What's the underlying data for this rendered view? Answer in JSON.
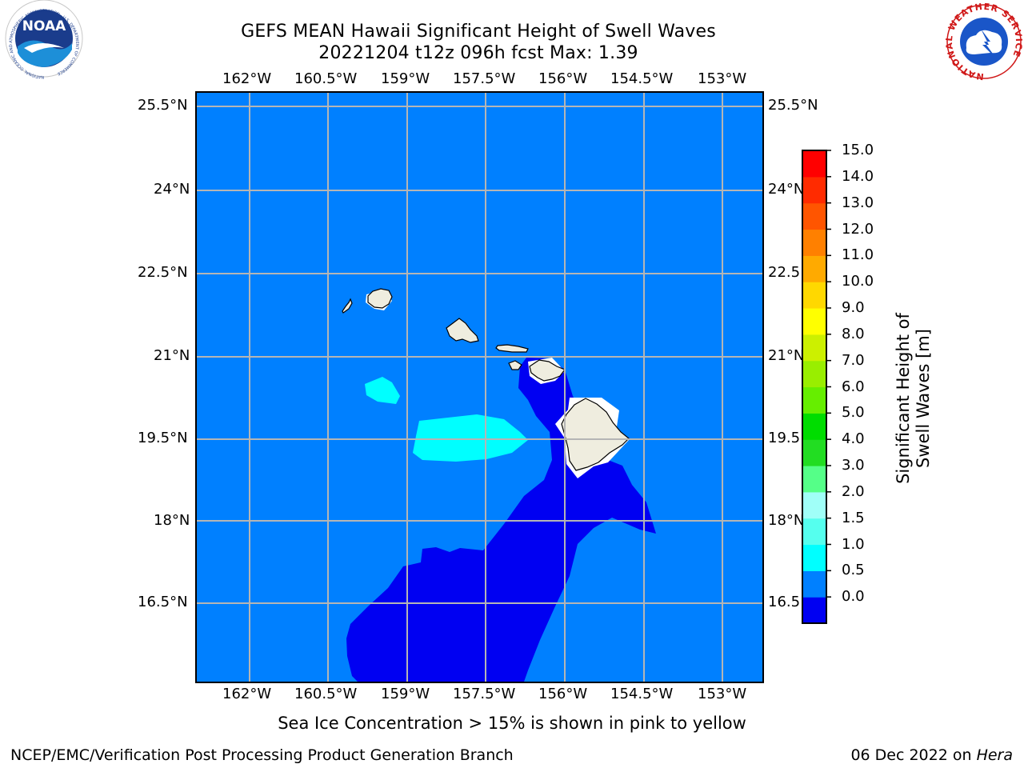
{
  "title": {
    "line1": "GEFS MEAN Hawaii Significant Height of Swell Waves",
    "line2": "20221204 t12z 096h fcst   Max: 1.39"
  },
  "map": {
    "lon_labels": [
      "162°W",
      "160.5°W",
      "159°W",
      "157.5°W",
      "156°W",
      "154.5°W",
      "153°W"
    ],
    "lat_labels_left": [
      "25.5°N",
      "24°N",
      "22.5°N",
      "21°N",
      "19.5°N",
      "18°N",
      "16.5°N"
    ],
    "lat_labels_right": [
      "25.5°N",
      "24°N",
      "22.5",
      "21°N",
      "19.5",
      "18°N",
      "16.5"
    ],
    "ocean_color": "#0080ff",
    "land_color": "#efeddf",
    "grid_color": "#b5b5b5"
  },
  "colorbar": {
    "label": "Significant Height of Swell Waves [m]",
    "ticks": [
      "15.0",
      "14.0",
      "13.0",
      "12.0",
      "11.0",
      "10.0",
      "9.0",
      "8.0",
      "7.0",
      "6.0",
      "5.0",
      "4.0",
      "3.0",
      "2.0",
      "1.5",
      "1.0",
      "0.5",
      "0.0"
    ],
    "colors": [
      "#0000f2",
      "#0080ff",
      "#00ffff",
      "#55ffee",
      "#a0fff8",
      "#55ff88",
      "#22dd22",
      "#00dd00",
      "#66ee00",
      "#99ee00",
      "#ccf000",
      "#ffff00",
      "#ffd800",
      "#ffaa00",
      "#ff8000",
      "#ff5500",
      "#ff2b00",
      "#ff0000"
    ]
  },
  "note": "Sea Ice Concentration > 15% is shown in pink to yellow",
  "footer": {
    "left": "NCEP/EMC/Verification Post Processing Product Generation Branch",
    "date": "06 Dec 2022 on ",
    "host": "Hera"
  },
  "logos": {
    "noaa_text": "NOAA",
    "noaa_ring": "NATIONAL OCEANIC AND ATMOSPHERIC ADMINISTRATION · U.S. DEPARTMENT OF COMMERCE",
    "nws_ring": "NATIONAL WEATHER SERVICE"
  }
}
